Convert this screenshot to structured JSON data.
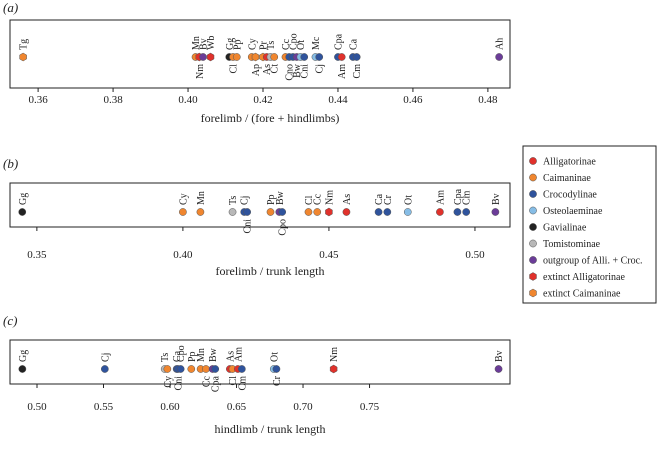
{
  "legend": [
    {
      "name": "Alligatorinae",
      "color": "#e0312b",
      "marker": "circle"
    },
    {
      "name": "Caimaninae",
      "color": "#f0862f",
      "marker": "circle"
    },
    {
      "name": "Crocodylinae",
      "color": "#2f539c",
      "marker": "circle"
    },
    {
      "name": "Osteolaeminae",
      "color": "#86bde6",
      "marker": "circle"
    },
    {
      "name": "Gavialinae",
      "color": "#222222",
      "marker": "circle"
    },
    {
      "name": "Tomistominae",
      "color": "#b8b8b8",
      "marker": "circle"
    },
    {
      "name": "outgroup of Alli. + Croc.",
      "color": "#6b3c98",
      "marker": "circle"
    },
    {
      "name": "extinct Alligatorinae",
      "color": "#e0312b",
      "marker": "hexagon"
    },
    {
      "name": "extinct Caimaninae",
      "color": "#f0862f",
      "marker": "hexagon"
    }
  ],
  "chart_data": [
    {
      "type": "scatter",
      "panel": "(a)",
      "xlabel": "forelimb / (fore + hindlimbs)",
      "xlim": [
        0.3525,
        0.4859
      ],
      "xticks": [
        {
          "value": 0.36,
          "label": "0.36"
        },
        {
          "value": 0.38,
          "label": "0.38"
        },
        {
          "value": 0.4,
          "label": "0.40"
        },
        {
          "value": 0.42,
          "label": "0.42"
        },
        {
          "value": 0.44,
          "label": "0.44"
        },
        {
          "value": 0.46,
          "label": "0.46"
        },
        {
          "value": 0.48,
          "label": "0.48"
        }
      ],
      "points": [
        {
          "label": "Tg",
          "x": 0.356,
          "group": 8
        },
        {
          "label": "Mn",
          "x": 0.402,
          "group": 1
        },
        {
          "label": "Nm",
          "x": 0.403,
          "group": 7
        },
        {
          "label": "Bv",
          "x": 0.404,
          "group": 6
        },
        {
          "label": "Wb",
          "x": 0.406,
          "group": 7
        },
        {
          "label": "Gg",
          "x": 0.411,
          "group": 4
        },
        {
          "label": "Cl",
          "x": 0.412,
          "group": 1
        },
        {
          "label": "Pp",
          "x": 0.413,
          "group": 1
        },
        {
          "label": "Cy",
          "x": 0.417,
          "group": 1
        },
        {
          "label": "Ap",
          "x": 0.418,
          "group": 8
        },
        {
          "label": "Pr",
          "x": 0.42,
          "group": 8
        },
        {
          "label": "As",
          "x": 0.421,
          "group": 0
        },
        {
          "label": "Ts",
          "x": 0.422,
          "group": 5
        },
        {
          "label": "Ct",
          "x": 0.423,
          "group": 1
        },
        {
          "label": "Cc",
          "x": 0.426,
          "group": 1
        },
        {
          "label": "Cno",
          "x": 0.427,
          "group": 2
        },
        {
          "label": "Cpo",
          "x": 0.428,
          "group": 2
        },
        {
          "label": "Bw",
          "x": 0.429,
          "group": 6
        },
        {
          "label": "Ot",
          "x": 0.43,
          "group": 3
        },
        {
          "label": "Cni",
          "x": 0.431,
          "group": 2
        },
        {
          "label": "Mc",
          "x": 0.434,
          "group": 3
        },
        {
          "label": "Cj",
          "x": 0.435,
          "group": 2
        },
        {
          "label": "Cpa",
          "x": 0.44,
          "group": 2
        },
        {
          "label": "Am",
          "x": 0.441,
          "group": 0
        },
        {
          "label": "Ca",
          "x": 0.444,
          "group": 2
        },
        {
          "label": "Cm",
          "x": 0.445,
          "group": 2
        },
        {
          "label": "Ah",
          "x": 0.483,
          "group": 6
        }
      ]
    },
    {
      "type": "scatter",
      "panel": "(b)",
      "xlabel": "forelimb / trunk length",
      "xlim": [
        0.3408,
        0.512
      ],
      "xticks": [
        {
          "value": 0.35,
          "label": "0.35"
        },
        {
          "value": 0.4,
          "label": "0.40"
        },
        {
          "value": 0.45,
          "label": "0.45"
        },
        {
          "value": 0.5,
          "label": "0.50"
        }
      ],
      "points": [
        {
          "label": "Gg",
          "x": 0.345,
          "group": 4
        },
        {
          "label": "Cy",
          "x": 0.4,
          "group": 1
        },
        {
          "label": "Mn",
          "x": 0.406,
          "group": 1
        },
        {
          "label": "Ts",
          "x": 0.417,
          "group": 5
        },
        {
          "label": "Cj",
          "x": 0.421,
          "group": 2
        },
        {
          "label": "Cni",
          "x": 0.422,
          "group": 2
        },
        {
          "label": "Pp",
          "x": 0.43,
          "group": 1
        },
        {
          "label": "Bw",
          "x": 0.433,
          "group": 6
        },
        {
          "label": "Cpo",
          "x": 0.434,
          "group": 2
        },
        {
          "label": "Cl",
          "x": 0.443,
          "group": 1
        },
        {
          "label": "Cc",
          "x": 0.446,
          "group": 1
        },
        {
          "label": "Nm",
          "x": 0.45,
          "group": 7
        },
        {
          "label": "As",
          "x": 0.456,
          "group": 0
        },
        {
          "label": "Ca",
          "x": 0.467,
          "group": 2
        },
        {
          "label": "Cr",
          "x": 0.47,
          "group": 2
        },
        {
          "label": "Ot",
          "x": 0.477,
          "group": 3
        },
        {
          "label": "Am",
          "x": 0.488,
          "group": 0
        },
        {
          "label": "Cpa",
          "x": 0.494,
          "group": 2
        },
        {
          "label": "Cm",
          "x": 0.497,
          "group": 2
        },
        {
          "label": "Bv",
          "x": 0.507,
          "group": 6
        }
      ]
    },
    {
      "type": "scatter",
      "panel": "(c)",
      "xlabel": "hindlimb / trunk length",
      "xlim": [
        0.4797,
        0.8556
      ],
      "xticks": [
        {
          "value": 0.5,
          "label": "0.50"
        },
        {
          "value": 0.55,
          "label": "0.55"
        },
        {
          "value": 0.6,
          "label": "0.60"
        },
        {
          "value": 0.65,
          "label": "0.65"
        },
        {
          "value": 0.7,
          "label": "0.70"
        },
        {
          "value": 0.75,
          "label": "0.75"
        }
      ],
      "points": [
        {
          "label": "Gg",
          "x": 0.489,
          "group": 4
        },
        {
          "label": "Cj",
          "x": 0.551,
          "group": 2
        },
        {
          "label": "Ts",
          "x": 0.596,
          "group": 5
        },
        {
          "label": "Cy",
          "x": 0.598,
          "group": 1
        },
        {
          "label": "Ca",
          "x": 0.605,
          "group": 2
        },
        {
          "label": "Cni",
          "x": 0.606,
          "group": 2
        },
        {
          "label": "Cpo",
          "x": 0.608,
          "group": 2
        },
        {
          "label": "Pp",
          "x": 0.616,
          "group": 1
        },
        {
          "label": "Mn",
          "x": 0.623,
          "group": 1
        },
        {
          "label": "Cc",
          "x": 0.627,
          "group": 1
        },
        {
          "label": "Bw",
          "x": 0.632,
          "group": 6
        },
        {
          "label": "Cpa",
          "x": 0.634,
          "group": 2
        },
        {
          "label": "As",
          "x": 0.645,
          "group": 0
        },
        {
          "label": "Cl",
          "x": 0.647,
          "group": 1
        },
        {
          "label": "Am",
          "x": 0.651,
          "group": 0
        },
        {
          "label": "Cm",
          "x": 0.654,
          "group": 2
        },
        {
          "label": "Ot",
          "x": 0.678,
          "group": 3
        },
        {
          "label": "Cr",
          "x": 0.68,
          "group": 2
        },
        {
          "label": "Nm",
          "x": 0.723,
          "group": 7
        },
        {
          "label": "Bv",
          "x": 0.847,
          "group": 6
        }
      ]
    }
  ]
}
